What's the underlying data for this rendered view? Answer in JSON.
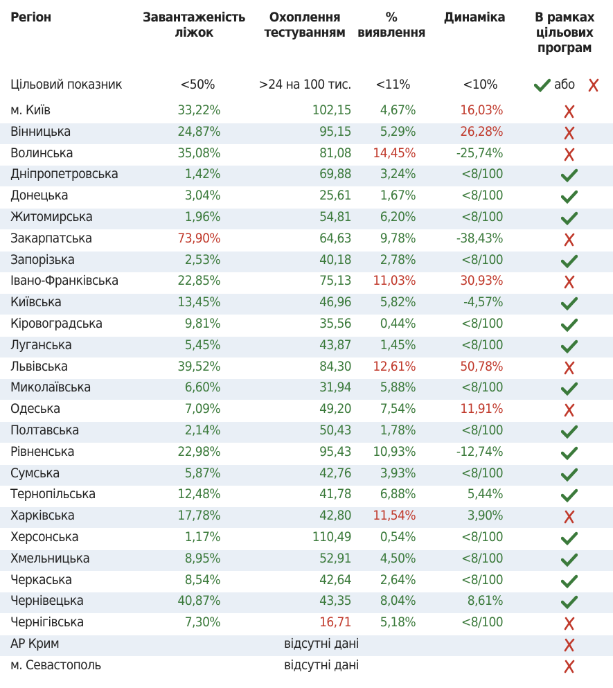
{
  "table": {
    "palette": {
      "green": "#3b7a3b",
      "red": "#c0392b"
    },
    "header": [
      "Регіон",
      "Завантаженість ліжок",
      "Охоплення тестуванням",
      "% виявлення",
      "Динаміка",
      "В рамках цільових програм"
    ],
    "target": {
      "label": "Цільовий показник",
      "values": [
        "<50%",
        ">24 на 100 тис.",
        "<11%",
        "<10%"
      ],
      "or": "або"
    },
    "rows": [
      {
        "region": "м. Київ",
        "cells": [
          "33,22%",
          "102,15",
          "4,67%",
          "16,03%"
        ],
        "colors": [
          "green",
          "green",
          "green",
          "red"
        ],
        "in_program": false
      },
      {
        "region": "Вінницька",
        "cells": [
          "24,87%",
          "95,15",
          "5,29%",
          "26,28%"
        ],
        "colors": [
          "green",
          "green",
          "green",
          "red"
        ],
        "in_program": false
      },
      {
        "region": "Волинська",
        "cells": [
          "35,08%",
          "81,08",
          "14,45%",
          "-25,74%"
        ],
        "colors": [
          "green",
          "green",
          "red",
          "green"
        ],
        "in_program": false
      },
      {
        "region": "Дніпропетровська",
        "cells": [
          "1,42%",
          "69,88",
          "3,24%",
          "<8/100"
        ],
        "colors": [
          "green",
          "green",
          "green",
          "green"
        ],
        "in_program": true
      },
      {
        "region": "Донецька",
        "cells": [
          "3,04%",
          "25,61",
          "1,67%",
          "<8/100"
        ],
        "colors": [
          "green",
          "green",
          "green",
          "green"
        ],
        "in_program": true
      },
      {
        "region": "Житомирська",
        "cells": [
          "1,96%",
          "54,81",
          "6,20%",
          "<8/100"
        ],
        "colors": [
          "green",
          "green",
          "green",
          "green"
        ],
        "in_program": true
      },
      {
        "region": "Закарпатська",
        "cells": [
          "73,90%",
          "64,63",
          "9,78%",
          "-38,43%"
        ],
        "colors": [
          "red",
          "green",
          "green",
          "green"
        ],
        "in_program": false
      },
      {
        "region": "Запорізька",
        "cells": [
          "2,53%",
          "40,18",
          "2,78%",
          "<8/100"
        ],
        "colors": [
          "green",
          "green",
          "green",
          "green"
        ],
        "in_program": true
      },
      {
        "region": "Івано-Франківська",
        "cells": [
          "22,85%",
          "75,13",
          "11,03%",
          "30,93%"
        ],
        "colors": [
          "green",
          "green",
          "red",
          "red"
        ],
        "in_program": false
      },
      {
        "region": "Київська",
        "cells": [
          "13,45%",
          "46,96",
          "5,82%",
          "-4,57%"
        ],
        "colors": [
          "green",
          "green",
          "green",
          "green"
        ],
        "in_program": true
      },
      {
        "region": "Кіровоградська",
        "cells": [
          "9,81%",
          "35,56",
          "0,44%",
          "<8/100"
        ],
        "colors": [
          "green",
          "green",
          "green",
          "green"
        ],
        "in_program": true
      },
      {
        "region": "Луганська",
        "cells": [
          "5,45%",
          "43,87",
          "1,45%",
          "<8/100"
        ],
        "colors": [
          "green",
          "green",
          "green",
          "green"
        ],
        "in_program": true
      },
      {
        "region": "Львівська",
        "cells": [
          "39,52%",
          "84,30",
          "12,61%",
          "50,78%"
        ],
        "colors": [
          "green",
          "green",
          "red",
          "red"
        ],
        "in_program": false
      },
      {
        "region": "Миколаївська",
        "cells": [
          "6,60%",
          "31,94",
          "5,88%",
          "<8/100"
        ],
        "colors": [
          "green",
          "green",
          "green",
          "green"
        ],
        "in_program": true
      },
      {
        "region": "Одеська",
        "cells": [
          "7,09%",
          "49,20",
          "7,54%",
          "11,91%"
        ],
        "colors": [
          "green",
          "green",
          "green",
          "red"
        ],
        "in_program": false
      },
      {
        "region": "Полтавська",
        "cells": [
          "2,14%",
          "50,43",
          "1,78%",
          "<8/100"
        ],
        "colors": [
          "green",
          "green",
          "green",
          "green"
        ],
        "in_program": true
      },
      {
        "region": "Рівненська",
        "cells": [
          "22,98%",
          "95,43",
          "10,93%",
          "-12,74%"
        ],
        "colors": [
          "green",
          "green",
          "green",
          "green"
        ],
        "in_program": true
      },
      {
        "region": "Сумська",
        "cells": [
          "5,87%",
          "42,76",
          "3,93%",
          "<8/100"
        ],
        "colors": [
          "green",
          "green",
          "green",
          "green"
        ],
        "in_program": true
      },
      {
        "region": "Тернопільська",
        "cells": [
          "12,48%",
          "41,78",
          "6,88%",
          "5,44%"
        ],
        "colors": [
          "green",
          "green",
          "green",
          "green"
        ],
        "in_program": true
      },
      {
        "region": "Харківська",
        "cells": [
          "17,78%",
          "42,80",
          "11,54%",
          "3,90%"
        ],
        "colors": [
          "green",
          "green",
          "red",
          "green"
        ],
        "in_program": false
      },
      {
        "region": "Херсонська",
        "cells": [
          "1,17%",
          "110,49",
          "0,54%",
          "<8/100"
        ],
        "colors": [
          "green",
          "green",
          "green",
          "green"
        ],
        "in_program": true
      },
      {
        "region": "Хмельницька",
        "cells": [
          "8,95%",
          "52,91",
          "4,50%",
          "<8/100"
        ],
        "colors": [
          "green",
          "green",
          "green",
          "green"
        ],
        "in_program": true
      },
      {
        "region": "Черкаська",
        "cells": [
          "8,54%",
          "42,64",
          "2,64%",
          "<8/100"
        ],
        "colors": [
          "green",
          "green",
          "green",
          "green"
        ],
        "in_program": true
      },
      {
        "region": "Чернівецька",
        "cells": [
          "40,87%",
          "43,35",
          "8,04%",
          "8,61%"
        ],
        "colors": [
          "green",
          "green",
          "green",
          "green"
        ],
        "in_program": true
      },
      {
        "region": "Чернігівська",
        "cells": [
          "7,30%",
          "16,71",
          "5,18%",
          "<8/100"
        ],
        "colors": [
          "green",
          "red",
          "green",
          "green"
        ],
        "in_program": false
      },
      {
        "region": "АР Крим",
        "note": "відсутні дані",
        "in_program": false
      },
      {
        "region": "м. Севастополь",
        "note": "відсутні дані",
        "in_program": false
      }
    ]
  }
}
